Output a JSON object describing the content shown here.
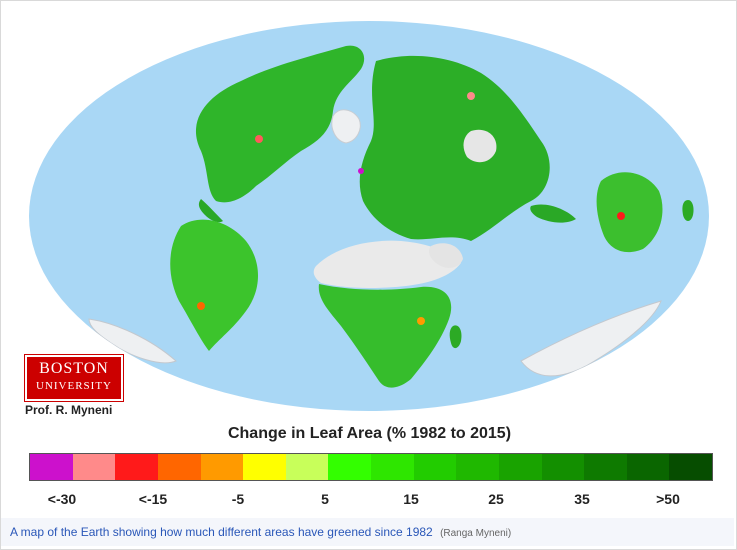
{
  "map": {
    "ocean_color": "#a9d7f5",
    "legend_title": "Change in Leaf Area (% 1982 to 2015)",
    "legend_colors": [
      "#cc11cc",
      "#ff8a8a",
      "#ff1a1a",
      "#ff6600",
      "#ff9a00",
      "#ffff00",
      "#c8ff5a",
      "#33ff00",
      "#2ee600",
      "#22cc00",
      "#1fb800",
      "#19a300",
      "#138f00",
      "#0e7a00",
      "#0a6600",
      "#064d00"
    ],
    "legend_labels": [
      "<-30",
      "<-15",
      "-5",
      "5",
      "15",
      "25",
      "35",
      ">50"
    ]
  },
  "logo": {
    "line1": "BOSTON",
    "line2": "UNIVERSITY"
  },
  "credit": "Prof. R. Myneni",
  "caption": {
    "text": "A map of the Earth showing how much different areas have greened since 1982",
    "source": "(Ranga Myneni)"
  }
}
